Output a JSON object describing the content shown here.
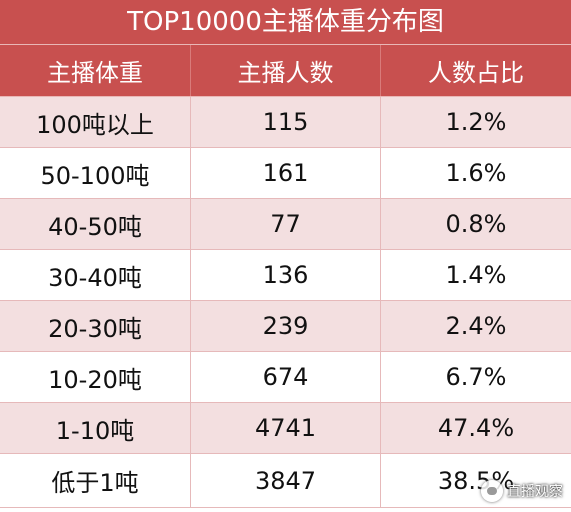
{
  "title": "TOP10000主播体重分布图",
  "headers": [
    "主播体重",
    "主播人数",
    "人数占比"
  ],
  "rows": [
    {
      "weight": "100吨以上",
      "count": "115",
      "share": "1.2%"
    },
    {
      "weight": "50-100吨",
      "count": "161",
      "share": "1.6%"
    },
    {
      "weight": "40-50吨",
      "count": "77",
      "share": "0.8%"
    },
    {
      "weight": "30-40吨",
      "count": "136",
      "share": "1.4%"
    },
    {
      "weight": "20-30吨",
      "count": "239",
      "share": "2.4%"
    },
    {
      "weight": "10-20吨",
      "count": "674",
      "share": "6.7%"
    },
    {
      "weight": "1-10吨",
      "count": "4741",
      "share": "47.4%"
    },
    {
      "weight": "低于1吨",
      "count": "3847",
      "share": "38.5%"
    }
  ],
  "watermark": {
    "text": "直播观察",
    "icon": "chat-bubble-icon"
  },
  "colors": {
    "header_bg": "#c8504f",
    "stripe_bg": "#f3dfe0",
    "row_bg": "#ffffff"
  }
}
